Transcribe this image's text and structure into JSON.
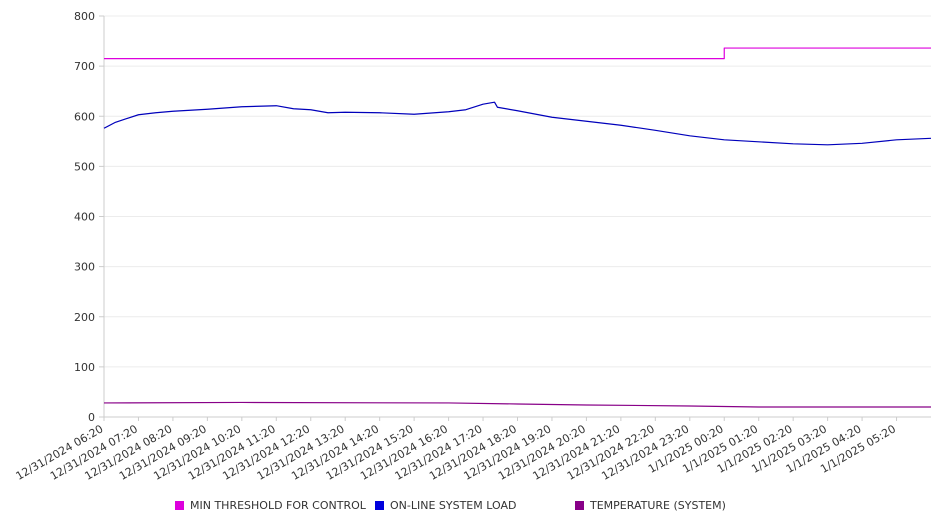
{
  "chart_data": {
    "type": "line",
    "title": "",
    "xlabel": "",
    "ylabel": "",
    "ylim": [
      0,
      800
    ],
    "yticks": [
      0,
      100,
      200,
      300,
      400,
      500,
      600,
      700,
      800
    ],
    "grid": true,
    "legend_position": "bottom",
    "x_range": [
      "12/31/2024 06:20",
      "1/1/2025 06:20"
    ],
    "categories": [
      "12/31/2024 06:20",
      "12/31/2024 07:20",
      "12/31/2024 08:20",
      "12/31/2024 09:20",
      "12/31/2024 10:20",
      "12/31/2024 11:20",
      "12/31/2024 12:20",
      "12/31/2024 13:20",
      "12/31/2024 14:20",
      "12/31/2024 15:20",
      "12/31/2024 16:20",
      "12/31/2024 17:20",
      "12/31/2024 18:20",
      "12/31/2024 19:20",
      "12/31/2024 20:20",
      "12/31/2024 21:20",
      "12/31/2024 22:20",
      "12/31/2024 23:20",
      "1/1/2025 00:20",
      "1/1/2025 01:20",
      "1/1/2025 02:20",
      "1/1/2025 03:20",
      "1/1/2025 04:20",
      "1/1/2025 05:20"
    ],
    "series": [
      {
        "name": "MIN THRESHOLD FOR CONTROL",
        "color": "#dd00dd",
        "x": [
          "12/31/2024 06:20",
          "1/1/2025 00:20",
          "1/1/2025 00:20",
          "1/1/2025 06:20"
        ],
        "values": [
          715,
          715,
          736,
          736
        ]
      },
      {
        "name": "ON-LINE SYSTEM LOAD",
        "color": "#0000bb",
        "x": [
          "12/31/2024 06:20",
          "12/31/2024 06:40",
          "12/31/2024 07:20",
          "12/31/2024 07:50",
          "12/31/2024 08:20",
          "12/31/2024 09:20",
          "12/31/2024 10:20",
          "12/31/2024 11:20",
          "12/31/2024 11:50",
          "12/31/2024 12:20",
          "12/31/2024 12:50",
          "12/31/2024 13:20",
          "12/31/2024 14:20",
          "12/31/2024 15:20",
          "12/31/2024 16:20",
          "12/31/2024 16:50",
          "12/31/2024 17:20",
          "12/31/2024 17:40",
          "12/31/2024 17:45",
          "12/31/2024 18:20",
          "12/31/2024 19:20",
          "12/31/2024 20:20",
          "12/31/2024 21:20",
          "12/31/2024 22:20",
          "12/31/2024 23:20",
          "1/1/2025 00:20",
          "1/1/2025 01:20",
          "1/1/2025 02:20",
          "1/1/2025 03:20",
          "1/1/2025 04:20",
          "1/1/2025 05:20",
          "1/1/2025 06:20"
        ],
        "values": [
          576,
          588,
          603,
          607,
          610,
          614,
          619,
          621,
          615,
          613,
          607,
          608,
          607,
          604,
          609,
          613,
          624,
          628,
          618,
          611,
          598,
          590,
          582,
          572,
          561,
          553,
          549,
          545,
          543,
          546,
          553,
          556
        ]
      },
      {
        "name": "TEMPERATURE (SYSTEM)",
        "color": "#880088",
        "x": [
          "12/31/2024 06:20",
          "12/31/2024 10:20",
          "12/31/2024 16:20",
          "12/31/2024 18:20",
          "12/31/2024 20:20",
          "12/31/2024 23:20",
          "1/1/2025 01:20",
          "1/1/2025 06:20"
        ],
        "values": [
          28,
          29,
          28,
          26,
          24,
          22,
          20,
          20
        ]
      }
    ]
  }
}
